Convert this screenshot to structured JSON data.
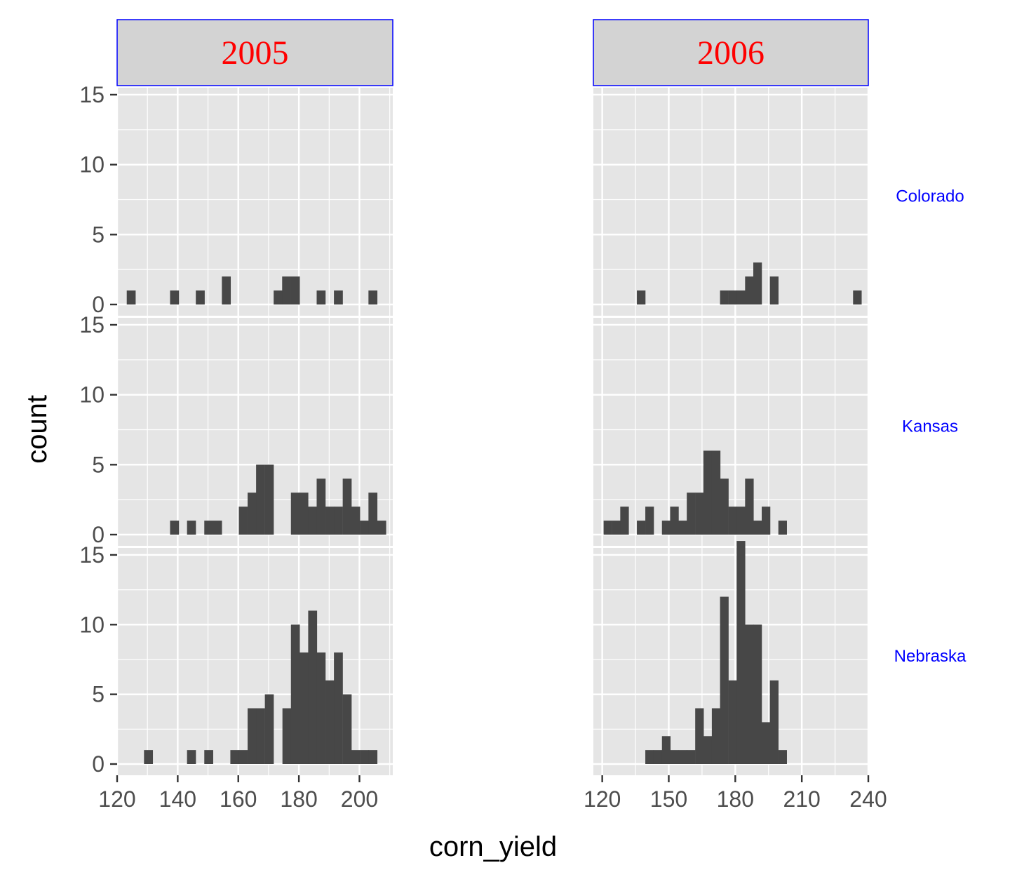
{
  "chart_data": {
    "type": "histogram",
    "xlabel": "corn_yield",
    "ylabel": "count",
    "columns": [
      "2005",
      "2006"
    ],
    "rows": [
      "Colorado",
      "Kansas",
      "Nebraska"
    ],
    "y_ticks": [
      0,
      5,
      10,
      15
    ],
    "ylim": [
      0,
      15.5
    ],
    "grid": true,
    "panel_background": "#e5e5e5",
    "bar_color": "#474747",
    "strip_background": "#d3d3d3",
    "strip_border_color": "#0000ff",
    "column_strip_text_color": "#ff0000",
    "row_strip_text_color": "#0000ff",
    "scales": {
      "2005": {
        "xlim": [
          120,
          211
        ],
        "x_ticks": [
          120,
          140,
          160,
          180,
          200
        ],
        "binwidth": 2.85
      },
      "2006": {
        "xlim": [
          116,
          240
        ],
        "x_ticks": [
          120,
          150,
          180,
          210,
          240
        ],
        "binwidth": 3.75
      }
    },
    "panels": [
      {
        "column": "2005",
        "row": "Colorado",
        "bins": [
          [
            124.6,
            1
          ],
          [
            138.9,
            1
          ],
          [
            147.4,
            1
          ],
          [
            156.0,
            2
          ],
          [
            173.1,
            1
          ],
          [
            175.9,
            2
          ],
          [
            178.8,
            2
          ],
          [
            187.3,
            1
          ],
          [
            193.0,
            1
          ],
          [
            204.4,
            1
          ]
        ]
      },
      {
        "column": "2005",
        "row": "Kansas",
        "bins": [
          [
            138.9,
            1
          ],
          [
            144.5,
            1
          ],
          [
            150.2,
            1
          ],
          [
            153.1,
            1
          ],
          [
            161.6,
            2
          ],
          [
            164.5,
            3
          ],
          [
            167.3,
            5
          ],
          [
            170.2,
            5
          ],
          [
            178.8,
            3
          ],
          [
            181.6,
            3
          ],
          [
            184.5,
            2
          ],
          [
            187.3,
            4
          ],
          [
            190.2,
            2
          ],
          [
            193.0,
            2
          ],
          [
            195.9,
            4
          ],
          [
            198.7,
            2
          ],
          [
            201.6,
            1
          ],
          [
            204.4,
            3
          ],
          [
            207.3,
            1
          ]
        ]
      },
      {
        "column": "2005",
        "row": "Nebraska",
        "bins": [
          [
            130.3,
            1
          ],
          [
            144.5,
            1
          ],
          [
            150.2,
            1
          ],
          [
            158.8,
            1
          ],
          [
            161.6,
            1
          ],
          [
            164.5,
            4
          ],
          [
            167.3,
            4
          ],
          [
            170.2,
            5
          ],
          [
            176.0,
            4
          ],
          [
            178.8,
            10
          ],
          [
            181.6,
            8
          ],
          [
            184.5,
            11
          ],
          [
            187.3,
            8
          ],
          [
            190.2,
            6
          ],
          [
            193.0,
            8
          ],
          [
            195.9,
            5
          ],
          [
            198.7,
            1
          ],
          [
            201.6,
            1
          ],
          [
            204.4,
            1
          ]
        ]
      },
      {
        "column": "2006",
        "row": "Colorado",
        "bins": [
          [
            137.5,
            1
          ],
          [
            175.0,
            1
          ],
          [
            178.8,
            1
          ],
          [
            182.5,
            1
          ],
          [
            186.3,
            2
          ],
          [
            190.0,
            3
          ],
          [
            197.5,
            2
          ],
          [
            235.0,
            1
          ]
        ]
      },
      {
        "column": "2006",
        "row": "Kansas",
        "bins": [
          [
            122.5,
            1
          ],
          [
            126.3,
            1
          ],
          [
            130.0,
            2
          ],
          [
            137.5,
            1
          ],
          [
            141.3,
            2
          ],
          [
            148.8,
            1
          ],
          [
            152.5,
            2
          ],
          [
            156.3,
            1
          ],
          [
            160.0,
            3
          ],
          [
            163.8,
            3
          ],
          [
            167.5,
            6
          ],
          [
            171.3,
            6
          ],
          [
            175.0,
            4
          ],
          [
            178.8,
            2
          ],
          [
            182.5,
            2
          ],
          [
            186.3,
            4
          ],
          [
            190.0,
            1
          ],
          [
            193.8,
            2
          ],
          [
            201.3,
            1
          ]
        ]
      },
      {
        "column": "2006",
        "row": "Nebraska",
        "bins": [
          [
            141.3,
            1
          ],
          [
            145.0,
            1
          ],
          [
            148.8,
            2
          ],
          [
            152.5,
            1
          ],
          [
            156.3,
            1
          ],
          [
            160.0,
            1
          ],
          [
            163.8,
            4
          ],
          [
            167.5,
            2
          ],
          [
            171.3,
            4
          ],
          [
            175.0,
            12
          ],
          [
            178.8,
            6
          ],
          [
            182.5,
            16
          ],
          [
            186.3,
            10
          ],
          [
            190.0,
            10
          ],
          [
            193.8,
            3
          ],
          [
            197.5,
            6
          ],
          [
            201.3,
            1
          ]
        ]
      }
    ]
  }
}
